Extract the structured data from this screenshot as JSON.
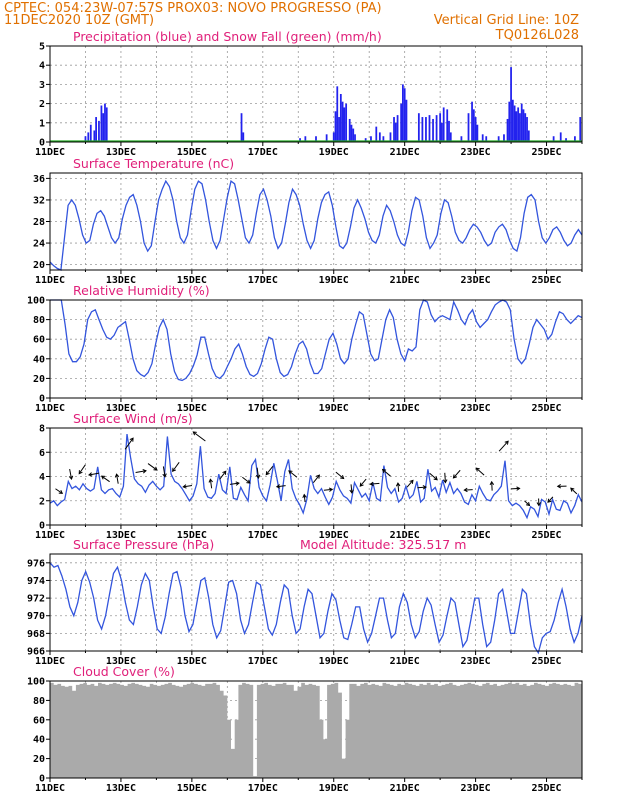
{
  "header": {
    "line1_left": "CPTEC:   054:23W-07:57S   PROX03: NOVO PROGRESSO (PA)",
    "line2_left": "11DEC2020 10Z (GMT)",
    "line2_right": "Vertical Grid Line: 10Z",
    "line3_right": "TQ0126L028"
  },
  "x_ticks": [
    "11DEC",
    "13DEC",
    "15DEC",
    "17DEC",
    "19DEC",
    "21DEC",
    "23DEC",
    "25DEC"
  ],
  "colors": {
    "line": "#3355dd",
    "precip": "#2222ee",
    "snow": "#22aa22",
    "cloud": "#aaaaaa",
    "title": "#e0207a",
    "header": "#e07000"
  },
  "chart_data": [
    {
      "id": "precip",
      "type": "bar",
      "title": "Precipitation (blue) and Snow Fall (green) (mm/h)",
      "ylim": [
        0,
        5
      ],
      "yticks": [
        "0",
        "1",
        "2",
        "3",
        "4",
        "5"
      ],
      "x_range_days": [
        0,
        15
      ],
      "series": [
        {
          "name": "Precipitation",
          "points": [
            [
              1.0,
              0.3
            ],
            [
              1.08,
              0.5
            ],
            [
              1.15,
              0.9
            ],
            [
              1.25,
              0.6
            ],
            [
              1.3,
              1.3
            ],
            [
              1.38,
              1.1
            ],
            [
              1.45,
              1.9
            ],
            [
              1.5,
              1.5
            ],
            [
              1.55,
              2.0
            ],
            [
              1.6,
              1.8
            ],
            [
              5.4,
              1.5
            ],
            [
              5.45,
              0.5
            ],
            [
              7.05,
              0.2
            ],
            [
              7.2,
              0.3
            ],
            [
              7.5,
              0.3
            ],
            [
              7.8,
              0.4
            ],
            [
              8.0,
              0.5
            ],
            [
              8.05,
              1.6
            ],
            [
              8.1,
              2.9
            ],
            [
              8.15,
              1.3
            ],
            [
              8.2,
              2.5
            ],
            [
              8.25,
              2.1
            ],
            [
              8.3,
              1.8
            ],
            [
              8.35,
              2.0
            ],
            [
              8.45,
              1.2
            ],
            [
              8.5,
              0.9
            ],
            [
              8.55,
              0.7
            ],
            [
              8.6,
              0.4
            ],
            [
              8.9,
              0.2
            ],
            [
              9.05,
              0.3
            ],
            [
              9.2,
              0.8
            ],
            [
              9.3,
              0.5
            ],
            [
              9.4,
              0.3
            ],
            [
              9.6,
              0.5
            ],
            [
              9.7,
              1.3
            ],
            [
              9.75,
              1.0
            ],
            [
              9.8,
              1.4
            ],
            [
              9.9,
              2.0
            ],
            [
              9.95,
              3.0
            ],
            [
              10.0,
              2.8
            ],
            [
              10.05,
              2.2
            ],
            [
              10.4,
              1.5
            ],
            [
              10.5,
              1.3
            ],
            [
              10.6,
              1.3
            ],
            [
              10.7,
              1.4
            ],
            [
              10.8,
              1.2
            ],
            [
              10.9,
              1.4
            ],
            [
              11.0,
              1.5
            ],
            [
              11.05,
              1.0
            ],
            [
              11.1,
              1.8
            ],
            [
              11.2,
              1.7
            ],
            [
              11.25,
              1.1
            ],
            [
              11.3,
              0.5
            ],
            [
              11.6,
              0.3
            ],
            [
              11.8,
              1.5
            ],
            [
              11.9,
              2.1
            ],
            [
              11.95,
              1.7
            ],
            [
              12.0,
              1.3
            ],
            [
              12.05,
              0.9
            ],
            [
              12.2,
              0.4
            ],
            [
              12.3,
              0.3
            ],
            [
              12.65,
              0.3
            ],
            [
              12.8,
              0.4
            ],
            [
              12.9,
              1.2
            ],
            [
              12.95,
              2.1
            ],
            [
              13.0,
              3.9
            ],
            [
              13.05,
              2.2
            ],
            [
              13.1,
              1.9
            ],
            [
              13.15,
              1.6
            ],
            [
              13.2,
              1.8
            ],
            [
              13.25,
              1.5
            ],
            [
              13.3,
              2.0
            ],
            [
              13.35,
              1.7
            ],
            [
              13.4,
              1.5
            ],
            [
              13.45,
              1.3
            ],
            [
              13.5,
              0.6
            ],
            [
              14.2,
              0.3
            ],
            [
              14.4,
              0.5
            ],
            [
              14.55,
              0.2
            ],
            [
              14.8,
              0.3
            ],
            [
              14.95,
              1.3
            ]
          ]
        },
        {
          "name": "Snow Fall",
          "points": []
        }
      ]
    },
    {
      "id": "temp",
      "type": "line",
      "title": "Surface Temperature (nC)",
      "ylim": [
        19,
        37
      ],
      "yticks": [
        "20",
        "24",
        "28",
        "32",
        "36"
      ],
      "ytick_values": [
        20,
        24,
        28,
        32,
        36
      ],
      "x_range_days": [
        0,
        15
      ],
      "values": [
        20.5,
        19.8,
        19.3,
        19.0,
        25.0,
        31.0,
        32.0,
        31.0,
        28.5,
        25.5,
        24.0,
        24.5,
        27.5,
        29.5,
        30.0,
        29.0,
        27.0,
        25.0,
        24.0,
        25.0,
        28.5,
        31.0,
        32.5,
        33.0,
        31.0,
        28.0,
        24.0,
        22.5,
        23.5,
        28.0,
        32.0,
        34.0,
        35.5,
        34.5,
        32.0,
        28.0,
        25.0,
        24.0,
        25.5,
        30.0,
        34.0,
        35.5,
        35.0,
        32.0,
        28.0,
        24.5,
        23.0,
        24.5,
        28.5,
        32.5,
        35.5,
        35.0,
        32.0,
        28.5,
        25.0,
        24.0,
        25.5,
        29.5,
        33.0,
        34.0,
        32.0,
        29.0,
        25.0,
        23.0,
        24.0,
        27.5,
        31.5,
        34.0,
        33.0,
        31.0,
        27.5,
        24.5,
        23.0,
        24.5,
        28.5,
        31.5,
        33.0,
        33.5,
        31.0,
        27.0,
        23.5,
        23.0,
        24.0,
        27.0,
        30.5,
        32.0,
        30.5,
        28.5,
        26.0,
        24.5,
        24.0,
        25.5,
        29.0,
        31.0,
        30.0,
        28.0,
        25.5,
        24.0,
        23.5,
        26.0,
        30.0,
        32.5,
        32.0,
        29.0,
        25.0,
        23.0,
        24.0,
        25.5,
        29.5,
        32.0,
        31.5,
        29.0,
        26.0,
        24.5,
        24.0,
        25.0,
        26.5,
        27.5,
        27.0,
        26.0,
        24.5,
        23.5,
        24.0,
        26.0,
        27.0,
        27.5,
        26.5,
        24.5,
        23.0,
        22.5,
        25.0,
        29.5,
        32.5,
        33.0,
        32.0,
        28.0,
        25.0,
        24.0,
        25.0,
        26.5,
        27.0,
        26.0,
        24.5,
        23.5,
        24.0,
        25.5,
        26.5,
        25.5
      ]
    },
    {
      "id": "rh",
      "type": "line",
      "title": "Relative Humidity (%)",
      "ylim": [
        0,
        100
      ],
      "yticks": [
        "0",
        "20",
        "40",
        "60",
        "80",
        "100"
      ],
      "ytick_values": [
        0,
        20,
        40,
        60,
        80,
        100
      ],
      "x_range_days": [
        0,
        15
      ],
      "values": [
        100,
        100,
        100,
        100,
        75,
        45,
        37,
        37,
        42,
        55,
        80,
        88,
        90,
        80,
        70,
        62,
        60,
        64,
        72,
        75,
        78,
        60,
        40,
        28,
        24,
        22,
        26,
        35,
        55,
        72,
        80,
        70,
        45,
        27,
        19,
        18,
        20,
        25,
        33,
        44,
        62,
        62,
        45,
        30,
        22,
        20,
        24,
        32,
        40,
        50,
        55,
        45,
        32,
        24,
        22,
        25,
        35,
        50,
        62,
        60,
        40,
        26,
        22,
        24,
        32,
        45,
        55,
        58,
        50,
        35,
        25,
        25,
        30,
        45,
        60,
        66,
        55,
        40,
        35,
        40,
        60,
        75,
        88,
        85,
        65,
        45,
        38,
        40,
        60,
        80,
        90,
        82,
        60,
        45,
        38,
        50,
        48,
        52,
        90,
        100,
        98,
        85,
        78,
        82,
        84,
        82,
        80,
        98,
        90,
        80,
        75,
        85,
        90,
        78,
        72,
        76,
        80,
        88,
        95,
        98,
        100,
        98,
        90,
        60,
        40,
        35,
        40,
        55,
        72,
        80,
        75,
        70,
        60,
        65,
        78,
        88,
        86,
        80,
        76,
        80,
        84,
        82
      ]
    },
    {
      "id": "wind",
      "type": "line",
      "title": "Surface Wind (m/s)",
      "ylim": [
        0,
        8
      ],
      "yticks": [
        "0",
        "2",
        "4",
        "6",
        "8"
      ],
      "ytick_values": [
        0,
        2,
        4,
        6,
        8
      ],
      "x_range_days": [
        0,
        15
      ],
      "values": [
        1.8,
        2.0,
        1.6,
        1.9,
        2.1,
        3.6,
        3.0,
        3.2,
        2.9,
        3.4,
        3.0,
        2.8,
        3.0,
        4.8,
        2.9,
        2.6,
        2.9,
        3.0,
        2.6,
        2.3,
        3.2,
        7.5,
        5.5,
        3.8,
        3.4,
        3.2,
        2.7,
        3.3,
        3.6,
        3.2,
        2.9,
        3.2,
        7.3,
        4.2,
        3.6,
        3.4,
        3.0,
        2.5,
        2.0,
        2.4,
        3.4,
        6.5,
        3.0,
        2.3,
        2.2,
        2.6,
        4.2,
        2.9,
        2.6,
        4.8,
        2.2,
        2.1,
        3.1,
        2.5,
        2.0,
        4.9,
        5.4,
        3.1,
        2.4,
        2.0,
        3.3,
        5.1,
        3.6,
        2.0,
        4.4,
        5.4,
        3.0,
        2.2,
        1.7,
        1.0,
        2.1,
        4.1,
        3.0,
        2.6,
        3.0,
        2.3,
        1.7,
        2.3,
        3.6,
        2.9,
        2.4,
        2.2,
        1.8,
        3.5,
        2.9,
        2.3,
        2.6,
        2.0,
        3.5,
        2.2,
        2.0,
        4.9,
        3.1,
        2.6,
        3.0,
        1.9,
        2.2,
        3.2,
        2.2,
        2.5,
        3.6,
        1.9,
        2.2,
        4.6,
        2.8,
        3.1,
        2.3,
        3.7,
        2.7,
        3.5,
        2.6,
        3.0,
        2.6,
        1.9,
        1.7,
        2.5,
        2.0,
        3.2,
        2.6,
        2.1,
        2.0,
        2.5,
        2.8,
        3.2,
        5.3,
        2.0,
        1.6,
        1.8,
        1.6,
        1.2,
        0.6,
        1.5,
        1.3,
        0.7,
        2.1,
        1.9,
        0.9,
        2.1,
        1.3,
        1.2,
        2.0,
        1.8,
        1.0,
        1.6,
        2.5,
        1.9
      ]
    },
    {
      "id": "pres",
      "type": "line",
      "title": "Surface Pressure (hPa)",
      "note": "Model Altitude: 325.517  m",
      "ylim": [
        966,
        977
      ],
      "yticks": [
        "966",
        "968",
        "970",
        "972",
        "974",
        "976"
      ],
      "ytick_values": [
        966,
        968,
        970,
        972,
        974,
        976
      ],
      "x_range_days": [
        0,
        15
      ],
      "values": [
        976.0,
        975.5,
        975.7,
        974.5,
        973.0,
        971.0,
        970.0,
        971.5,
        974.0,
        975.0,
        973.8,
        972.0,
        969.5,
        968.5,
        970.0,
        972.5,
        974.8,
        975.5,
        974.0,
        971.5,
        969.5,
        969.0,
        971.0,
        973.5,
        974.8,
        974.0,
        971.0,
        968.5,
        968.0,
        969.8,
        972.5,
        974.8,
        975.0,
        973.2,
        970.0,
        968.2,
        969.0,
        971.5,
        974.0,
        974.3,
        972.0,
        969.0,
        967.5,
        968.3,
        971.0,
        973.8,
        974.0,
        972.5,
        969.5,
        968.0,
        969.0,
        971.5,
        973.8,
        973.5,
        971.0,
        968.5,
        967.8,
        969.0,
        971.5,
        973.5,
        973.0,
        970.0,
        968.0,
        968.5,
        971.0,
        973.0,
        972.5,
        970.0,
        967.5,
        968.0,
        970.5,
        972.5,
        971.8,
        969.5,
        967.5,
        967.3,
        969.0,
        971.0,
        971.0,
        968.5,
        967.0,
        968.0,
        970.0,
        972.0,
        972.0,
        969.5,
        967.5,
        968.0,
        971.0,
        972.5,
        971.5,
        969.0,
        967.5,
        968.2,
        970.5,
        972.0,
        971.2,
        969.0,
        967.0,
        967.8,
        970.0,
        972.0,
        971.5,
        969.0,
        966.5,
        967.2,
        969.5,
        972.0,
        972.0,
        969.0,
        966.5,
        967.0,
        969.5,
        972.5,
        973.0,
        970.5,
        968.0,
        968.0,
        970.5,
        973.0,
        972.5,
        969.0,
        966.5,
        965.8,
        967.5,
        968.0,
        968.2,
        969.5,
        971.5,
        973.0,
        971.0,
        968.5,
        967.0,
        968.0,
        970.0
      ]
    },
    {
      "id": "cloud",
      "type": "area",
      "title": "Cloud Cover (%)",
      "ylim": [
        0,
        100
      ],
      "yticks": [
        "0",
        "20",
        "40",
        "60",
        "80",
        "100"
      ],
      "ytick_values": [
        0,
        20,
        40,
        60,
        80,
        100
      ],
      "x_range_days": [
        0,
        15
      ],
      "values": [
        98,
        96,
        97,
        95,
        94,
        95,
        90,
        96,
        97,
        98,
        96,
        97,
        95,
        98,
        97,
        96,
        97,
        98,
        97,
        96,
        95,
        97,
        98,
        97,
        96,
        95,
        94,
        97,
        96,
        95,
        96,
        97,
        98,
        96,
        95,
        94,
        96,
        97,
        98,
        97,
        96,
        95,
        97,
        97,
        98,
        96,
        90,
        85,
        60,
        30,
        60,
        96,
        98,
        97,
        96,
        2,
        96,
        97,
        98,
        96,
        95,
        97,
        97,
        98,
        96,
        96,
        90,
        94,
        98,
        96,
        97,
        96,
        95,
        60,
        40,
        96,
        97,
        98,
        88,
        20,
        60,
        97,
        97,
        95,
        97,
        98,
        96,
        97,
        96,
        95,
        98,
        97,
        96,
        95,
        97,
        96,
        98,
        97,
        96,
        95,
        97,
        96,
        98,
        96,
        97,
        95,
        96,
        97,
        98,
        96,
        95,
        96,
        97,
        98,
        97,
        96,
        95,
        97,
        98,
        96,
        97,
        95,
        96,
        97,
        98,
        97,
        98,
        96,
        97,
        95,
        96,
        98,
        97,
        96,
        95,
        97,
        98,
        97,
        96,
        97,
        96,
        95,
        98,
        97
      ]
    }
  ]
}
